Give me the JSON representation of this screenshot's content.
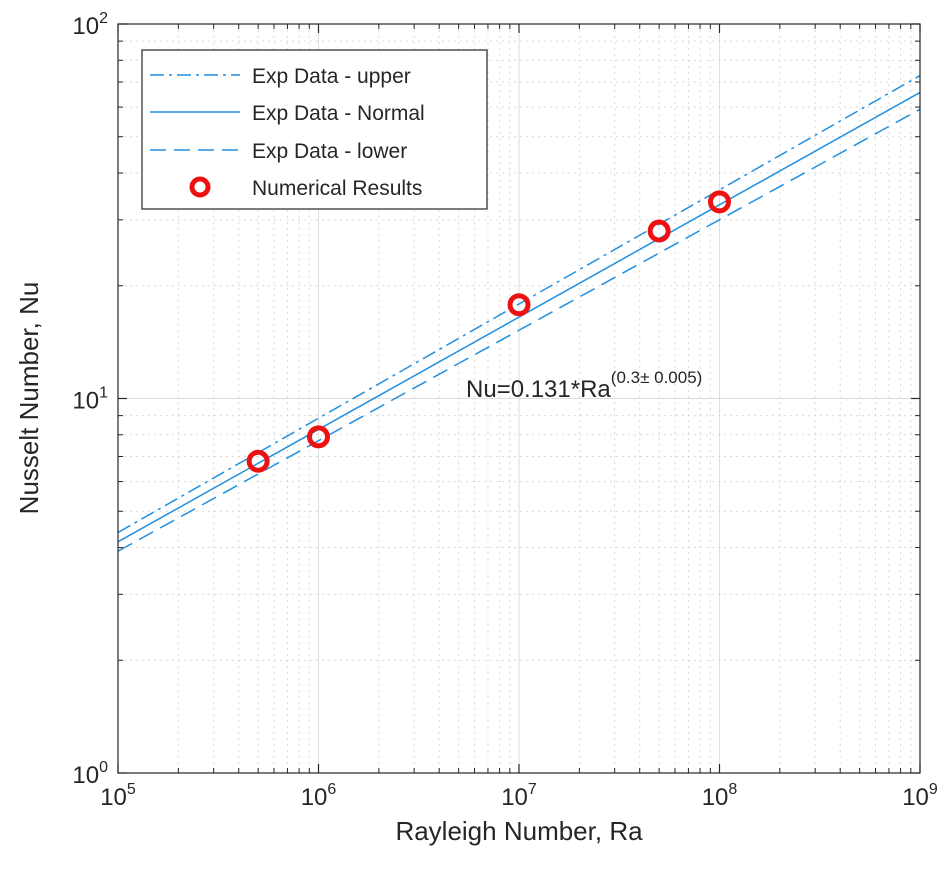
{
  "chart_data": {
    "type": "line",
    "xscale": "log",
    "yscale": "log",
    "xlim": [
      100000,
      1000000000
    ],
    "ylim": [
      1,
      100
    ],
    "xlabel": "Rayleigh Number, Ra",
    "ylabel": "Nusselt Number, Nu",
    "xticks": [
      {
        "base": "10",
        "exp": "5",
        "value": 100000
      },
      {
        "base": "10",
        "exp": "6",
        "value": 1000000
      },
      {
        "base": "10",
        "exp": "7",
        "value": 10000000
      },
      {
        "base": "10",
        "exp": "8",
        "value": 100000000
      },
      {
        "base": "10",
        "exp": "9",
        "value": 1000000000
      }
    ],
    "yticks": [
      {
        "base": "10",
        "exp": "0",
        "value": 1
      },
      {
        "base": "10",
        "exp": "1",
        "value": 10
      },
      {
        "base": "10",
        "exp": "2",
        "value": 100
      }
    ],
    "grid": true,
    "minor_grid": true,
    "legend_position": "top-left",
    "series": [
      {
        "name": "Exp Data - upper",
        "style": "dashdot",
        "color": "#1f8fe0",
        "coef": 0.131,
        "exponent": 0.305
      },
      {
        "name": "Exp Data - Normal",
        "style": "solid",
        "color": "#1f8fe0",
        "coef": 0.131,
        "exponent": 0.3
      },
      {
        "name": "Exp Data - lower",
        "style": "dashed",
        "color": "#1f8fe0",
        "coef": 0.131,
        "exponent": 0.295
      },
      {
        "name": "Numerical Results",
        "style": "marker",
        "marker": "circle",
        "color": "#ee1111",
        "points": [
          {
            "x": 500000,
            "y": 6.8
          },
          {
            "x": 1000000,
            "y": 7.9
          },
          {
            "x": 10000000,
            "y": 17.8
          },
          {
            "x": 50000000,
            "y": 28
          },
          {
            "x": 100000000,
            "y": 33.5
          }
        ]
      }
    ],
    "annotation": {
      "text": "Nu=0.131*Ra",
      "sup": "(0.3± 0.005)",
      "x": 5500000,
      "y": 10.5
    }
  }
}
